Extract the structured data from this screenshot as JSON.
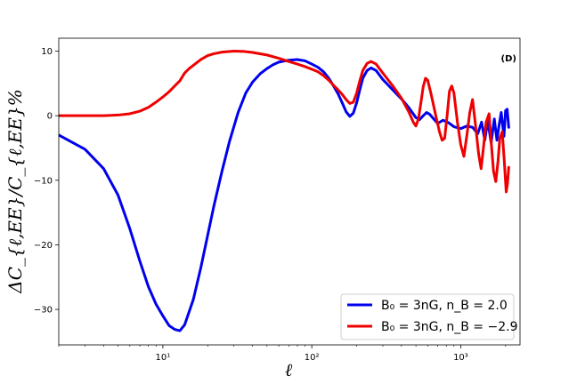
{
  "chart_data": {
    "type": "line",
    "panel_label": "(D)",
    "xlabel": "ℓ",
    "ylabel": "ΔC_{ℓ,EE}/C_{ℓ,EE}%",
    "xscale": "log",
    "xlim": [
      2,
      2500
    ],
    "ylim": [
      -35.5,
      12
    ],
    "x_ticks": [
      {
        "value": 10,
        "label": "10¹"
      },
      {
        "value": 100,
        "label": "10²"
      },
      {
        "value": 1000,
        "label": "10³"
      }
    ],
    "y_ticks": [
      {
        "value": 10,
        "label": "10"
      },
      {
        "value": 0,
        "label": "0"
      },
      {
        "value": -10,
        "label": "−10"
      },
      {
        "value": -20,
        "label": "−20"
      },
      {
        "value": -30,
        "label": "−30"
      }
    ],
    "legend_position": "lower-right",
    "grid": false,
    "series": [
      {
        "name": "B₀ = 3nG, n_B = 2.0",
        "color": "#0000ee",
        "points": [
          [
            2,
            -3
          ],
          [
            3,
            -5.2
          ],
          [
            4,
            -8.2
          ],
          [
            5,
            -12.3
          ],
          [
            6,
            -17.5
          ],
          [
            7,
            -22.5
          ],
          [
            8,
            -26.5
          ],
          [
            9,
            -29.2
          ],
          [
            10,
            -31
          ],
          [
            11,
            -32.5
          ],
          [
            12,
            -33.1
          ],
          [
            13,
            -33.3
          ],
          [
            14,
            -32.4
          ],
          [
            16,
            -28.5
          ],
          [
            18,
            -23.5
          ],
          [
            20,
            -18.5
          ],
          [
            22,
            -14
          ],
          [
            25,
            -8.5
          ],
          [
            28,
            -4
          ],
          [
            32,
            0.5
          ],
          [
            36,
            3.5
          ],
          [
            40,
            5.2
          ],
          [
            45,
            6.5
          ],
          [
            50,
            7.3
          ],
          [
            55,
            7.9
          ],
          [
            60,
            8.3
          ],
          [
            70,
            8.6
          ],
          [
            80,
            8.7
          ],
          [
            90,
            8.5
          ],
          [
            100,
            8
          ],
          [
            110,
            7.5
          ],
          [
            120,
            6.8
          ],
          [
            130,
            5.8
          ],
          [
            140,
            4.6
          ],
          [
            150,
            3.4
          ],
          [
            160,
            2
          ],
          [
            170,
            0.6
          ],
          [
            180,
            -0.1
          ],
          [
            190,
            0.4
          ],
          [
            200,
            2
          ],
          [
            210,
            4
          ],
          [
            220,
            5.8
          ],
          [
            235,
            7
          ],
          [
            250,
            7.4
          ],
          [
            270,
            7
          ],
          [
            300,
            5.6
          ],
          [
            330,
            4.6
          ],
          [
            370,
            3.4
          ],
          [
            400,
            2.6
          ],
          [
            450,
            1.2
          ],
          [
            500,
            -0.3
          ],
          [
            530,
            -0.6
          ],
          [
            560,
            0
          ],
          [
            590,
            0.5
          ],
          [
            620,
            0.2
          ],
          [
            700,
            -1.2
          ],
          [
            760,
            -0.7
          ],
          [
            830,
            -1.1
          ],
          [
            900,
            -1.7
          ],
          [
            1000,
            -2
          ],
          [
            1100,
            -1.6
          ],
          [
            1200,
            -1.8
          ],
          [
            1300,
            -2.8
          ],
          [
            1380,
            -1
          ],
          [
            1450,
            -3.8
          ],
          [
            1520,
            -0.8
          ],
          [
            1600,
            -4.2
          ],
          [
            1680,
            -0.5
          ],
          [
            1750,
            -3.8
          ],
          [
            1800,
            -1.8
          ],
          [
            1870,
            0.5
          ],
          [
            1950,
            -3.2
          ],
          [
            2000,
            0.8
          ],
          [
            2050,
            1
          ],
          [
            2100,
            -1.8
          ]
        ]
      },
      {
        "name": "B₀ = 3nG, n_B = −2.9",
        "color": "#ee0000",
        "points": [
          [
            2,
            0
          ],
          [
            3,
            0
          ],
          [
            4,
            0
          ],
          [
            5,
            0.1
          ],
          [
            6,
            0.3
          ],
          [
            7,
            0.7
          ],
          [
            8,
            1.3
          ],
          [
            9,
            2.1
          ],
          [
            10,
            2.9
          ],
          [
            11,
            3.7
          ],
          [
            12,
            4.6
          ],
          [
            13,
            5.4
          ],
          [
            14,
            6.6
          ],
          [
            15,
            7.3
          ],
          [
            16,
            7.8
          ],
          [
            18,
            8.7
          ],
          [
            20,
            9.3
          ],
          [
            22,
            9.6
          ],
          [
            25,
            9.85
          ],
          [
            30,
            10
          ],
          [
            35,
            9.95
          ],
          [
            40,
            9.8
          ],
          [
            50,
            9.4
          ],
          [
            60,
            8.9
          ],
          [
            70,
            8.4
          ],
          [
            80,
            8
          ],
          [
            90,
            7.6
          ],
          [
            100,
            7.2
          ],
          [
            110,
            6.8
          ],
          [
            120,
            6.2
          ],
          [
            130,
            5.5
          ],
          [
            140,
            4.7
          ],
          [
            150,
            4
          ],
          [
            160,
            3.3
          ],
          [
            170,
            2.5
          ],
          [
            180,
            1.9
          ],
          [
            190,
            2.1
          ],
          [
            200,
            3.5
          ],
          [
            210,
            5.4
          ],
          [
            220,
            7
          ],
          [
            235,
            8.1
          ],
          [
            250,
            8.4
          ],
          [
            270,
            8
          ],
          [
            300,
            6.6
          ],
          [
            350,
            4.6
          ],
          [
            400,
            2.7
          ],
          [
            450,
            0.5
          ],
          [
            480,
            -1
          ],
          [
            500,
            -1.6
          ],
          [
            520,
            -0.5
          ],
          [
            540,
            2
          ],
          [
            560,
            4.5
          ],
          [
            580,
            5.8
          ],
          [
            600,
            5.5
          ],
          [
            630,
            3.5
          ],
          [
            680,
            0
          ],
          [
            720,
            -2.5
          ],
          [
            750,
            -3.8
          ],
          [
            780,
            -3.5
          ],
          [
            810,
            0
          ],
          [
            840,
            3.8
          ],
          [
            870,
            4.6
          ],
          [
            900,
            3.5
          ],
          [
            950,
            -1
          ],
          [
            1000,
            -4.5
          ],
          [
            1050,
            -6.3
          ],
          [
            1100,
            -3
          ],
          [
            1150,
            0.5
          ],
          [
            1200,
            2.5
          ],
          [
            1250,
            -1
          ],
          [
            1320,
            -6
          ],
          [
            1370,
            -8.2
          ],
          [
            1420,
            -5
          ],
          [
            1480,
            -1
          ],
          [
            1550,
            0.3
          ],
          [
            1600,
            -4
          ],
          [
            1660,
            -8.6
          ],
          [
            1720,
            -10.2
          ],
          [
            1780,
            -7
          ],
          [
            1830,
            -3.5
          ],
          [
            1900,
            -2.5
          ],
          [
            1960,
            -7
          ],
          [
            2020,
            -11.8
          ],
          [
            2060,
            -10.5
          ],
          [
            2100,
            -8
          ]
        ]
      }
    ]
  }
}
